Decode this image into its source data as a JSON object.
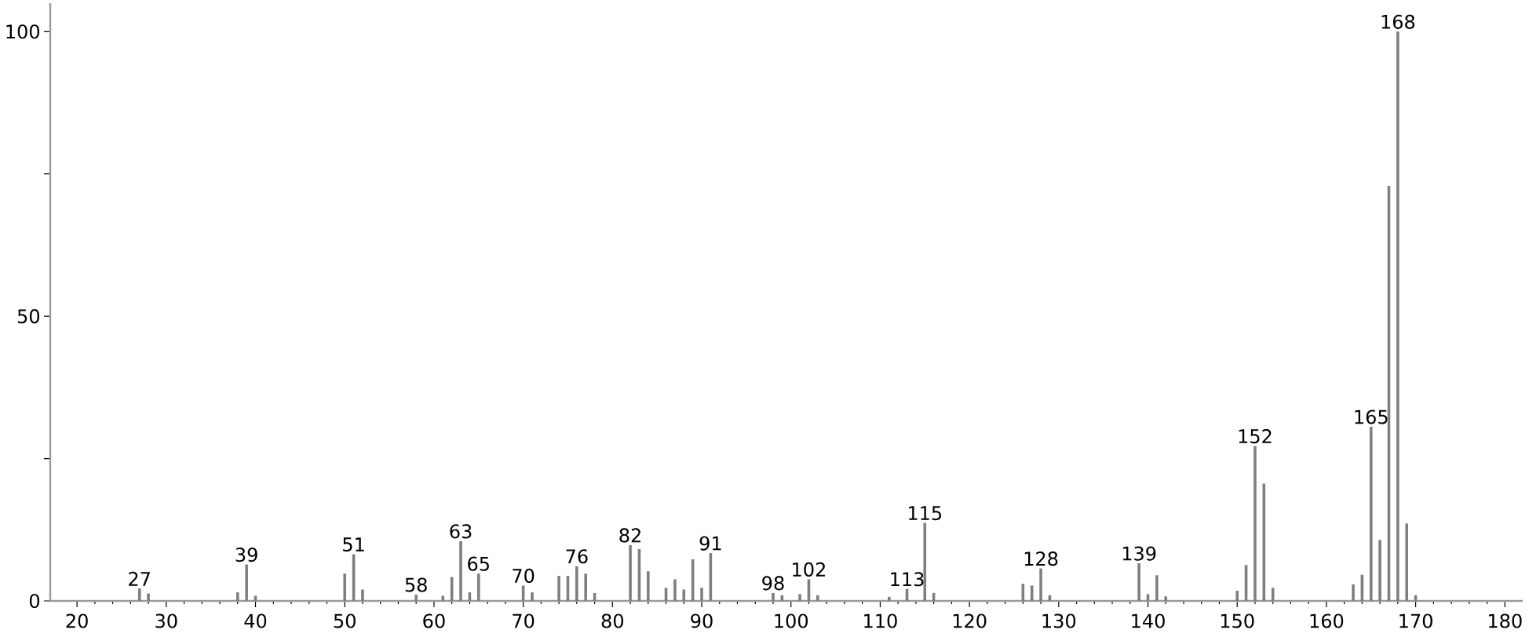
{
  "chart_data": {
    "type": "bar",
    "color": "#7f7f7f",
    "x": [
      27,
      28,
      38,
      39,
      40,
      50,
      51,
      52,
      58,
      61,
      62,
      63,
      64,
      65,
      70,
      71,
      74,
      75,
      76,
      77,
      78,
      82,
      83,
      84,
      86,
      87,
      88,
      89,
      90,
      91,
      98,
      99,
      101,
      102,
      103,
      111,
      113,
      115,
      116,
      126,
      127,
      128,
      129,
      139,
      140,
      141,
      142,
      150,
      151,
      152,
      153,
      154,
      163,
      164,
      165,
      166,
      167,
      168,
      169,
      170
    ],
    "values": [
      2.2,
      1.3,
      1.5,
      6.4,
      0.9,
      4.8,
      8.2,
      2.0,
      1.1,
      0.9,
      4.2,
      10.5,
      1.5,
      4.8,
      2.7,
      1.5,
      4.4,
      4.4,
      6.1,
      4.8,
      1.4,
      9.8,
      9.1,
      5.2,
      2.3,
      3.8,
      2.0,
      7.3,
      2.3,
      8.4,
      1.4,
      1.0,
      1.2,
      3.8,
      1.0,
      0.7,
      2.1,
      13.7,
      1.4,
      3.0,
      2.7,
      5.7,
      1.0,
      6.6,
      1.2,
      4.5,
      0.8,
      1.8,
      6.3,
      27.2,
      20.6,
      2.3,
      2.9,
      4.6,
      30.6,
      10.7,
      72.9,
      100,
      13.6,
      1.0
    ],
    "annotations": [
      {
        "text": "27",
        "x": 27,
        "y": 2.2
      },
      {
        "text": "39",
        "x": 39,
        "y": 6.4
      },
      {
        "text": "51",
        "x": 51,
        "y": 8.2
      },
      {
        "text": "58",
        "x": 58,
        "y": 1.1
      },
      {
        "text": "63",
        "x": 63,
        "y": 10.5
      },
      {
        "text": "65",
        "x": 65,
        "y": 4.8
      },
      {
        "text": "70",
        "x": 70,
        "y": 2.7
      },
      {
        "text": "76",
        "x": 76,
        "y": 6.1
      },
      {
        "text": "82",
        "x": 82,
        "y": 9.8
      },
      {
        "text": "91",
        "x": 91,
        "y": 8.4
      },
      {
        "text": "98",
        "x": 98,
        "y": 1.4
      },
      {
        "text": "102",
        "x": 102,
        "y": 3.8
      },
      {
        "text": "113",
        "x": 113,
        "y": 2.1
      },
      {
        "text": "115",
        "x": 115,
        "y": 13.7
      },
      {
        "text": "128",
        "x": 128,
        "y": 5.7
      },
      {
        "text": "139",
        "x": 139,
        "y": 6.6
      },
      {
        "text": "152",
        "x": 152,
        "y": 27.2
      },
      {
        "text": "165",
        "x": 165,
        "y": 30.6
      },
      {
        "text": "168",
        "x": 168,
        "y": 100
      }
    ],
    "xlim": [
      17,
      182
    ],
    "xticks": [
      20,
      30,
      40,
      50,
      60,
      70,
      80,
      90,
      100,
      110,
      120,
      130,
      140,
      150,
      160,
      170,
      180
    ],
    "ylim": [
      0,
      105
    ],
    "yticks": [
      0,
      {
        "value": 25,
        "label": null
      },
      50,
      {
        "value": 75,
        "label": null
      },
      100
    ]
  }
}
